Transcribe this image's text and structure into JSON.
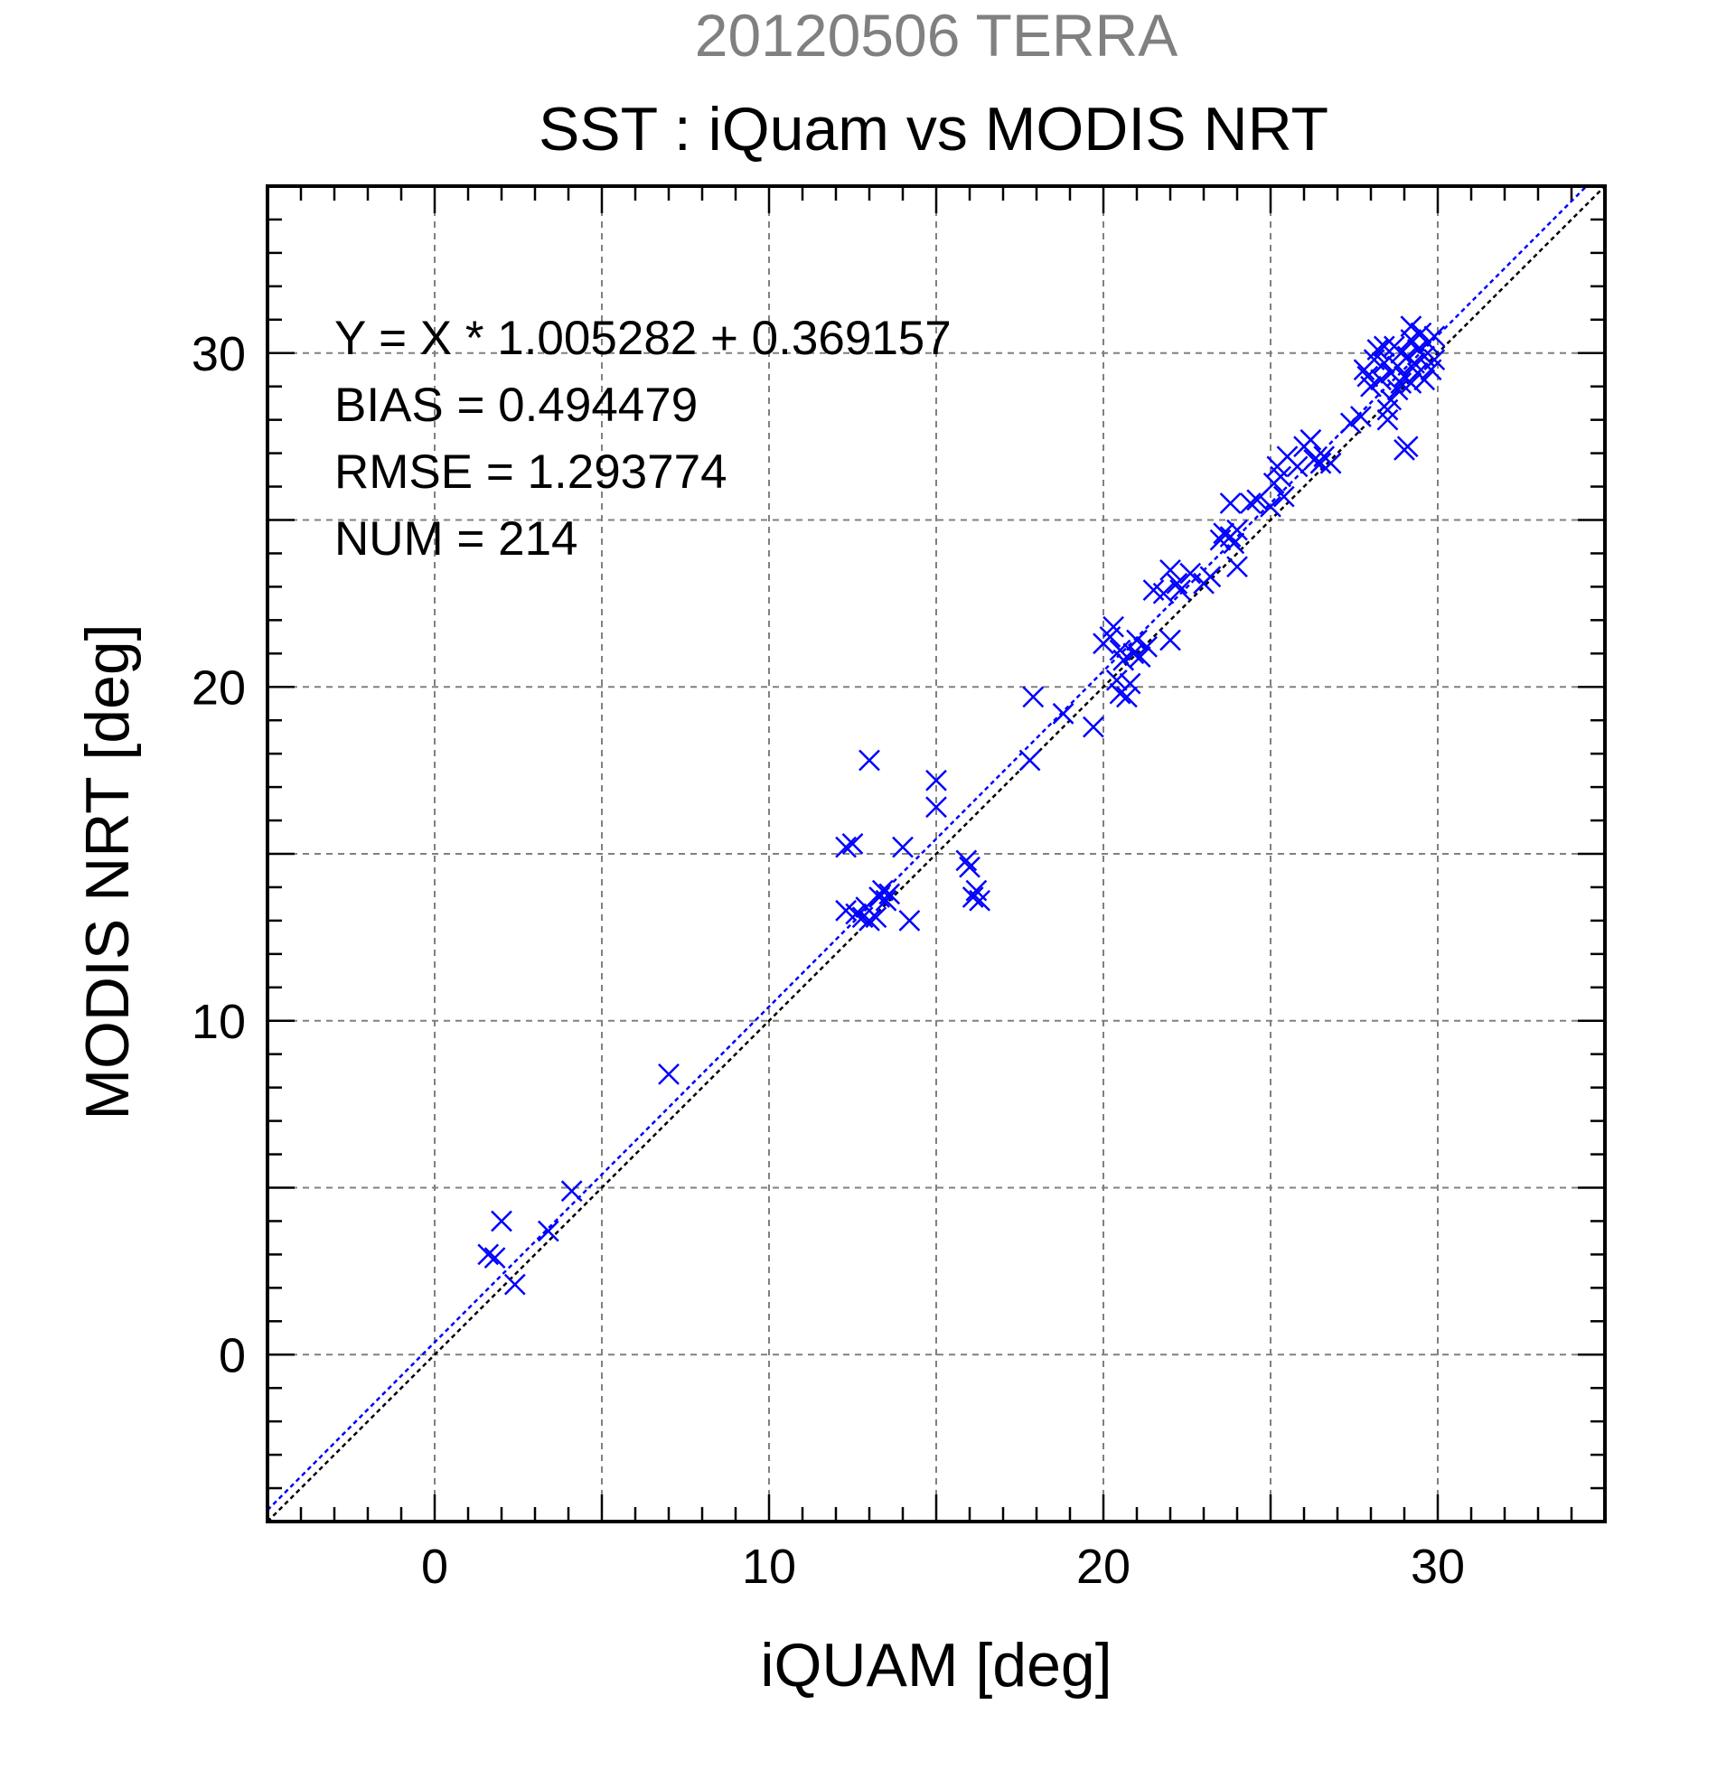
{
  "chart_data": {
    "type": "scatter",
    "supertitle": "20120506 TERRA",
    "title": "SST : iQuam vs MODIS NRT",
    "xlabel": "iQUAM [deg]",
    "ylabel": "MODIS NRT [deg]",
    "xlim": [
      -5,
      35
    ],
    "ylim": [
      -5,
      35
    ],
    "xticks": [
      0,
      10,
      20,
      30
    ],
    "yticks": [
      0,
      10,
      20,
      30
    ],
    "grid": true,
    "marker": "x",
    "colors": {
      "points": "#0000ff",
      "fit_line": "#0000ff",
      "identity_line": "#000000",
      "supertitle": "#808080",
      "grid": "#808080"
    },
    "stats": [
      "Y = X * 1.005282 + 0.369157",
      "BIAS = 0.494479",
      "RMSE = 1.293774",
      "NUM = 214"
    ],
    "fit": {
      "slope": 1.005282,
      "intercept": 0.369157
    },
    "identity": {
      "slope": 1,
      "intercept": 0
    },
    "series": [
      {
        "points": [
          [
            1.6,
            3.0
          ],
          [
            1.8,
            2.9
          ],
          [
            2.0,
            4.0
          ],
          [
            2.4,
            2.1
          ],
          [
            3.4,
            3.7
          ],
          [
            4.1,
            4.9
          ],
          [
            7.0,
            8.4
          ],
          [
            12.3,
            15.2
          ],
          [
            12.5,
            15.3
          ],
          [
            12.3,
            13.3
          ],
          [
            12.6,
            13.2
          ],
          [
            12.8,
            13.1
          ],
          [
            13.0,
            13.0
          ],
          [
            13.2,
            13.1
          ],
          [
            12.9,
            13.4
          ],
          [
            13.3,
            13.7
          ],
          [
            13.4,
            13.9
          ],
          [
            13.6,
            13.8
          ],
          [
            13.5,
            13.6
          ],
          [
            13.0,
            17.8
          ],
          [
            14.0,
            15.2
          ],
          [
            14.2,
            13.0
          ],
          [
            15.0,
            17.2
          ],
          [
            15.0,
            16.4
          ],
          [
            15.9,
            14.8
          ],
          [
            16.0,
            14.6
          ],
          [
            16.1,
            13.7
          ],
          [
            16.2,
            13.9
          ],
          [
            16.3,
            13.6
          ],
          [
            17.8,
            17.8
          ],
          [
            17.9,
            19.7
          ],
          [
            18.8,
            19.2
          ],
          [
            19.7,
            18.8
          ],
          [
            20.0,
            21.3
          ],
          [
            20.2,
            21.5
          ],
          [
            20.3,
            21.8
          ],
          [
            20.5,
            21.1
          ],
          [
            20.6,
            20.8
          ],
          [
            20.4,
            20.2
          ],
          [
            20.5,
            19.8
          ],
          [
            20.7,
            19.7
          ],
          [
            20.8,
            20.1
          ],
          [
            20.9,
            21.0
          ],
          [
            21.0,
            21.4
          ],
          [
            21.1,
            20.9
          ],
          [
            21.3,
            21.2
          ],
          [
            21.5,
            22.9
          ],
          [
            21.8,
            22.8
          ],
          [
            22.0,
            23.5
          ],
          [
            22.0,
            21.4
          ],
          [
            22.2,
            23.1
          ],
          [
            22.3,
            22.9
          ],
          [
            22.6,
            23.4
          ],
          [
            23.0,
            23.1
          ],
          [
            23.2,
            23.3
          ],
          [
            23.5,
            24.4
          ],
          [
            23.6,
            24.6
          ],
          [
            23.8,
            24.5
          ],
          [
            23.9,
            24.3
          ],
          [
            24.0,
            24.7
          ],
          [
            24.0,
            23.6
          ],
          [
            23.8,
            25.5
          ],
          [
            24.4,
            25.5
          ],
          [
            24.6,
            25.6
          ],
          [
            25.0,
            25.4
          ],
          [
            25.1,
            26.1
          ],
          [
            25.2,
            26.6
          ],
          [
            25.3,
            26.3
          ],
          [
            25.4,
            25.7
          ],
          [
            25.5,
            26.9
          ],
          [
            25.8,
            26.6
          ],
          [
            26.0,
            27.2
          ],
          [
            26.2,
            27.4
          ],
          [
            26.3,
            26.8
          ],
          [
            26.5,
            26.7
          ],
          [
            26.6,
            26.9
          ],
          [
            26.8,
            26.7
          ],
          [
            27.4,
            27.9
          ],
          [
            27.7,
            28.1
          ],
          [
            27.8,
            29.5
          ],
          [
            27.9,
            29.3
          ],
          [
            28.0,
            29.0
          ],
          [
            28.1,
            29.8
          ],
          [
            28.2,
            30.1
          ],
          [
            28.3,
            29.2
          ],
          [
            28.4,
            29.7
          ],
          [
            28.5,
            28.3
          ],
          [
            28.5,
            28.0
          ],
          [
            28.6,
            28.6
          ],
          [
            28.6,
            29.4
          ],
          [
            28.7,
            30.2
          ],
          [
            28.8,
            29.6
          ],
          [
            28.8,
            28.9
          ],
          [
            28.9,
            30.0
          ],
          [
            29.0,
            29.3
          ],
          [
            29.0,
            27.1
          ],
          [
            29.1,
            27.2
          ],
          [
            29.1,
            29.9
          ],
          [
            29.2,
            30.4
          ],
          [
            29.2,
            29.1
          ],
          [
            29.3,
            29.7
          ],
          [
            29.4,
            30.1
          ],
          [
            29.4,
            29.4
          ],
          [
            29.5,
            30.6
          ],
          [
            29.6,
            29.9
          ],
          [
            29.7,
            30.3
          ],
          [
            29.8,
            29.5
          ],
          [
            29.9,
            30.5
          ],
          [
            29.9,
            29.8
          ],
          [
            29.6,
            29.2
          ],
          [
            28.9,
            29.1
          ],
          [
            29.2,
            30.8
          ],
          [
            28.4,
            30.2
          ]
        ]
      }
    ]
  }
}
